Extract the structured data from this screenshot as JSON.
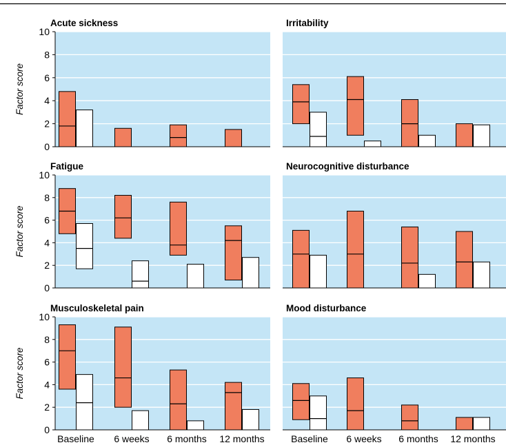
{
  "figure": {
    "ylabel": "Factor score",
    "categories": [
      "Baseline",
      "6 weeks",
      "6 months",
      "12 months"
    ],
    "colors": {
      "plot_bg": "#c4e5f6",
      "group_a": "#f07e5e",
      "group_b": "#ffffff",
      "stroke": "#000000"
    }
  },
  "chart_data": [
    {
      "type": "bar",
      "title": "Acute sickness",
      "ylim": [
        0,
        10
      ],
      "yticks": [
        0,
        2,
        4,
        6,
        8,
        10
      ],
      "series": [
        {
          "color": "#f07e5e",
          "boxes": [
            {
              "low": 0,
              "mid": 1.8,
              "high": 4.8
            },
            {
              "low": 0,
              "mid": null,
              "high": 1.6
            },
            {
              "low": 0,
              "mid": 0.8,
              "high": 1.9
            },
            {
              "low": 0,
              "mid": null,
              "high": 1.5
            }
          ]
        },
        {
          "color": "#ffffff",
          "boxes": [
            {
              "low": 0,
              "mid": null,
              "high": 3.2
            },
            null,
            null,
            null
          ]
        }
      ]
    },
    {
      "type": "bar",
      "title": "Irritability",
      "ylim": [
        0,
        10
      ],
      "yticks": [
        0,
        2,
        4,
        6,
        8,
        10
      ],
      "series": [
        {
          "color": "#f07e5e",
          "boxes": [
            {
              "low": 2.0,
              "mid": 3.9,
              "high": 5.4
            },
            {
              "low": 1.0,
              "mid": 4.1,
              "high": 6.1
            },
            {
              "low": 0,
              "mid": 2.0,
              "high": 4.1
            },
            {
              "low": 0,
              "mid": null,
              "high": 2.0
            }
          ]
        },
        {
          "color": "#ffffff",
          "boxes": [
            {
              "low": 0,
              "mid": 0.9,
              "high": 3.0
            },
            {
              "low": 0,
              "mid": null,
              "high": 0.5
            },
            {
              "low": 0,
              "mid": null,
              "high": 1.0
            },
            {
              "low": 0,
              "mid": null,
              "high": 1.9
            }
          ]
        }
      ]
    },
    {
      "type": "bar",
      "title": "Fatigue",
      "ylim": [
        0,
        10
      ],
      "yticks": [
        0,
        2,
        4,
        6,
        8,
        10
      ],
      "series": [
        {
          "color": "#f07e5e",
          "boxes": [
            {
              "low": 4.8,
              "mid": 6.8,
              "high": 8.8
            },
            {
              "low": 4.4,
              "mid": 6.2,
              "high": 8.2
            },
            {
              "low": 2.9,
              "mid": 3.8,
              "high": 7.6
            },
            {
              "low": 0.7,
              "mid": 4.2,
              "high": 5.5
            }
          ]
        },
        {
          "color": "#ffffff",
          "boxes": [
            {
              "low": 1.7,
              "mid": 3.5,
              "high": 5.7
            },
            {
              "low": 0,
              "mid": 0.6,
              "high": 2.4
            },
            {
              "low": 0,
              "mid": null,
              "high": 2.1
            },
            {
              "low": 0,
              "mid": null,
              "high": 2.7
            }
          ]
        }
      ]
    },
    {
      "type": "bar",
      "title": "Neurocognitive disturbance",
      "ylim": [
        0,
        10
      ],
      "yticks": [
        0,
        2,
        4,
        6,
        8,
        10
      ],
      "series": [
        {
          "color": "#f07e5e",
          "boxes": [
            {
              "low": 0,
              "mid": 3.0,
              "high": 5.1
            },
            {
              "low": 0,
              "mid": 3.0,
              "high": 6.8
            },
            {
              "low": 0,
              "mid": 2.2,
              "high": 5.4
            },
            {
              "low": 0,
              "mid": 2.3,
              "high": 5.0
            }
          ]
        },
        {
          "color": "#ffffff",
          "boxes": [
            {
              "low": 0,
              "mid": null,
              "high": 2.9
            },
            null,
            {
              "low": 0,
              "mid": null,
              "high": 1.2
            },
            {
              "low": 0,
              "mid": null,
              "high": 2.3
            }
          ]
        }
      ]
    },
    {
      "type": "bar",
      "title": "Musculoskeletal pain",
      "ylim": [
        0,
        10
      ],
      "yticks": [
        0,
        2,
        4,
        6,
        8,
        10
      ],
      "series": [
        {
          "color": "#f07e5e",
          "boxes": [
            {
              "low": 3.6,
              "mid": 7.0,
              "high": 9.3
            },
            {
              "low": 2.0,
              "mid": 4.6,
              "high": 9.1
            },
            {
              "low": 0,
              "mid": 2.3,
              "high": 5.3
            },
            {
              "low": 0,
              "mid": 3.3,
              "high": 4.2
            }
          ]
        },
        {
          "color": "#ffffff",
          "boxes": [
            {
              "low": 0,
              "mid": 2.4,
              "high": 4.9
            },
            {
              "low": 0,
              "mid": null,
              "high": 1.7
            },
            {
              "low": 0,
              "mid": null,
              "high": 0.8
            },
            {
              "low": 0,
              "mid": null,
              "high": 1.8
            }
          ]
        }
      ]
    },
    {
      "type": "bar",
      "title": "Mood disturbance",
      "ylim": [
        0,
        10
      ],
      "yticks": [
        0,
        2,
        4,
        6,
        8,
        10
      ],
      "series": [
        {
          "color": "#f07e5e",
          "boxes": [
            {
              "low": 0.9,
              "mid": 2.6,
              "high": 4.1
            },
            {
              "low": 0,
              "mid": 1.7,
              "high": 4.6
            },
            {
              "low": 0,
              "mid": 0.8,
              "high": 2.2
            },
            {
              "low": 0,
              "mid": null,
              "high": 1.1
            }
          ]
        },
        {
          "color": "#ffffff",
          "boxes": [
            {
              "low": 0,
              "mid": 1.0,
              "high": 3.0
            },
            null,
            null,
            {
              "low": 0,
              "mid": null,
              "high": 1.1
            }
          ]
        }
      ]
    }
  ]
}
